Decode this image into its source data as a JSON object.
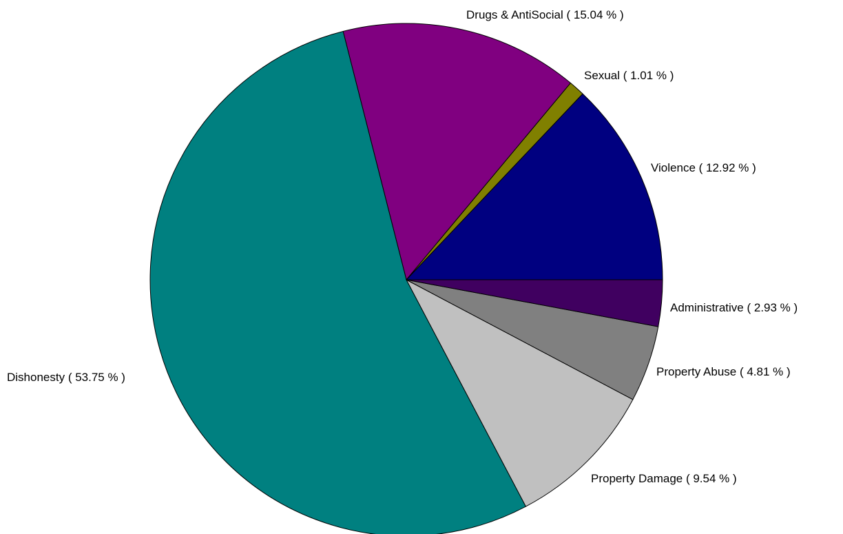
{
  "chart_data": {
    "type": "pie",
    "title": "",
    "start_angle_deg": 0,
    "direction": "counterclockwise",
    "slices": [
      {
        "name": "Violence",
        "value": 12.92,
        "label": "Violence ( 12.92 % )",
        "color": "#000080"
      },
      {
        "name": "Sexual",
        "value": 1.01,
        "label": "Sexual ( 1.01 % )",
        "color": "#808000"
      },
      {
        "name": "Drugs & AntiSocial",
        "value": 15.04,
        "label": "Drugs & AntiSocial ( 15.04 % )",
        "color": "#800080"
      },
      {
        "name": "Dishonesty",
        "value": 53.75,
        "label": "Dishonesty ( 53.75 % )",
        "color": "#008080"
      },
      {
        "name": "Property Damage",
        "value": 9.54,
        "label": "Property Damage ( 9.54 % )",
        "color": "#c0c0c0"
      },
      {
        "name": "Property Abuse",
        "value": 4.81,
        "label": "Property Abuse ( 4.81 % )",
        "color": "#808080"
      },
      {
        "name": "Administrative",
        "value": 2.93,
        "label": "Administrative ( 2.93 % )",
        "color": "#400060"
      }
    ]
  }
}
